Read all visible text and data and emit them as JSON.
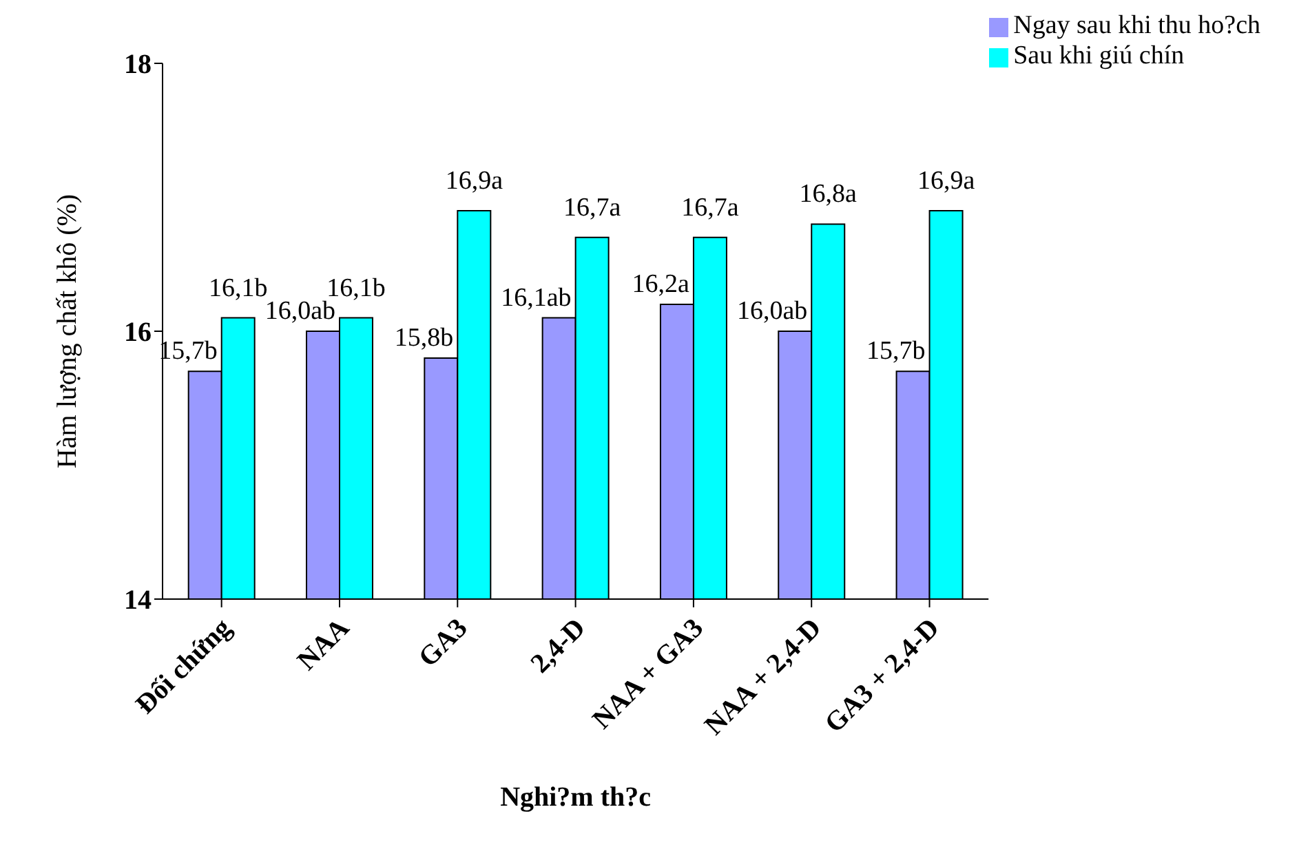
{
  "chart_data": {
    "type": "bar",
    "xlabel": "Nghi?m th?c",
    "ylabel": "Hàm lượng chất khô (%)",
    "categories": [
      "Đối chứng",
      "NAA",
      "GA3",
      "2,4-D",
      "NAA + GA3",
      "NAA + 2,4-D",
      "GA3 + 2,4-D"
    ],
    "series": [
      {
        "name": "Ngay sau khi thu ho?ch",
        "color": "#9999ff",
        "values": [
          15.7,
          16.0,
          15.8,
          16.1,
          16.2,
          16.0,
          15.7
        ],
        "value_labels": [
          "15,7b",
          "16,0ab",
          "15,8b",
          "16,1ab",
          "16,2a",
          "16,0ab",
          "15,7b"
        ]
      },
      {
        "name": "Sau khi giú chín",
        "color": "#00ffff",
        "values": [
          16.1,
          16.1,
          16.9,
          16.7,
          16.7,
          16.8,
          16.9
        ],
        "value_labels": [
          "16,1b",
          "16,1b",
          "16,9a",
          "16,7a",
          "16,7a",
          "16,8a",
          "16,9a"
        ]
      }
    ],
    "ylim": [
      14,
      18
    ],
    "yticks": [
      14,
      16,
      18
    ],
    "grid": false,
    "legend": "top right"
  }
}
